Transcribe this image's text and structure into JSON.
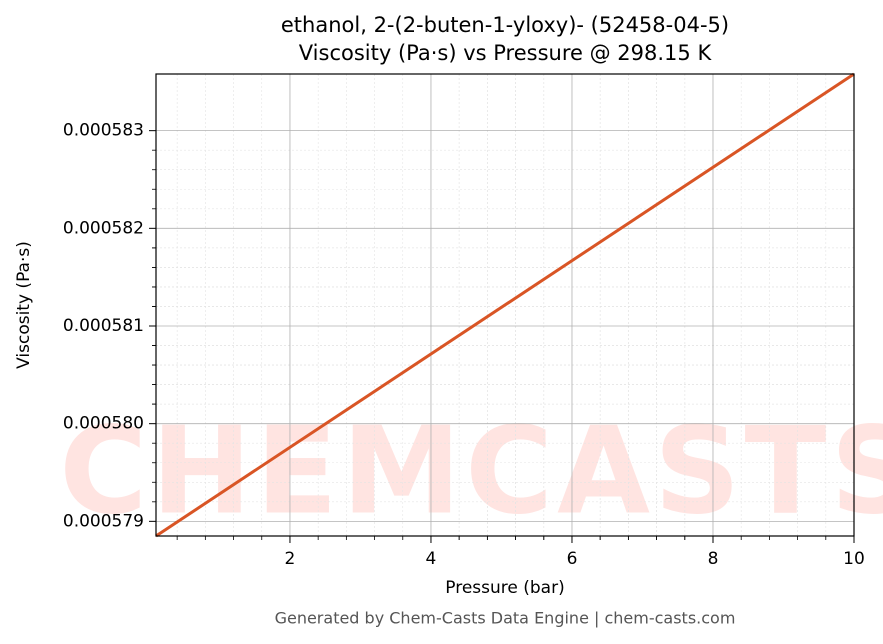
{
  "chart_data": {
    "type": "line",
    "title": "ethanol, 2-(2-buten-1-yloxy)- (52458-04-5)",
    "subtitle": "Viscosity (Pa·s) vs Pressure @ 298.15 K",
    "x_label": "Pressure (bar)",
    "y_label": "Viscosity (Pa·s)",
    "footer": "Generated by Chem-Casts Data Engine | chem-casts.com",
    "watermark": "CHEMCASTS",
    "x": [
      0.1,
      10
    ],
    "series": [
      {
        "name": "Viscosity",
        "color": "#d95525",
        "values": [
          0.00057885,
          0.00058358
        ]
      }
    ],
    "xlim": [
      0.1,
      10
    ],
    "xticks": [
      2,
      4,
      6,
      8,
      10
    ],
    "ylim": [
      0.00057885,
      0.00058358
    ],
    "yticks": [
      0.000579,
      {
        "value": 0.00058,
        "label": "0.000580"
      },
      0.000581,
      0.000582,
      0.000583
    ],
    "grid": true
  }
}
